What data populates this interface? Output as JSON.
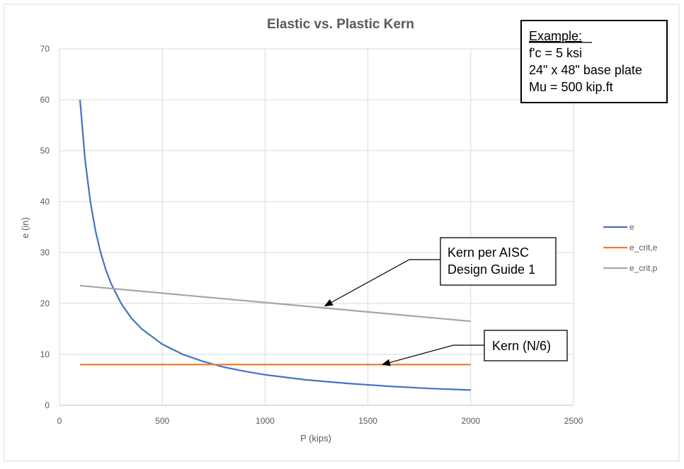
{
  "chart_data": {
    "type": "line",
    "title": "Elastic vs. Plastic Kern",
    "xlabel": "P (kips)",
    "ylabel": "e (in)",
    "xlim": [
      0,
      2500
    ],
    "ylim": [
      0,
      70
    ],
    "x_ticks": [
      "0",
      "500",
      "1000",
      "1500",
      "2000",
      "2500"
    ],
    "y_ticks": [
      "0",
      "10",
      "20",
      "30",
      "40",
      "50",
      "60",
      "70"
    ],
    "x_tick_values": [
      0,
      500,
      1000,
      1500,
      2000,
      2500
    ],
    "y_tick_values": [
      0,
      10,
      20,
      30,
      40,
      50,
      60,
      70
    ],
    "grid": true,
    "legend_position": "right",
    "series": [
      {
        "name": "e",
        "color": "#4472c4",
        "x": [
          100,
          125,
          150,
          175,
          200,
          225,
          250,
          300,
          350,
          400,
          500,
          600,
          700,
          800,
          900,
          1000,
          1200,
          1400,
          1600,
          1800,
          2000
        ],
        "y": [
          60,
          48,
          40,
          34.3,
          30,
          26.7,
          24,
          20,
          17.1,
          15,
          12,
          10,
          8.6,
          7.5,
          6.7,
          6,
          5,
          4.3,
          3.75,
          3.3,
          3
        ]
      },
      {
        "name": "e_crit,e",
        "color": "#ed7d31",
        "x": [
          100,
          2000
        ],
        "y": [
          8,
          8
        ]
      },
      {
        "name": "e_crit,p",
        "color": "#a5a5a5",
        "x": [
          100,
          2000
        ],
        "y": [
          23.5,
          16.5
        ]
      }
    ],
    "annotations": [
      {
        "lines": [
          "Example:",
          "f'c = 5 ksi",
          "24\" x 48\" base plate",
          "Mu = 500 kip.ft"
        ]
      },
      {
        "lines": [
          "Kern per AISC",
          "Design Guide 1"
        ],
        "arrow_to": {
          "x": 1290,
          "y": 19.5
        }
      },
      {
        "lines": [
          "Kern (N/6)"
        ],
        "arrow_to": {
          "x": 1570,
          "y": 8
        }
      }
    ]
  }
}
